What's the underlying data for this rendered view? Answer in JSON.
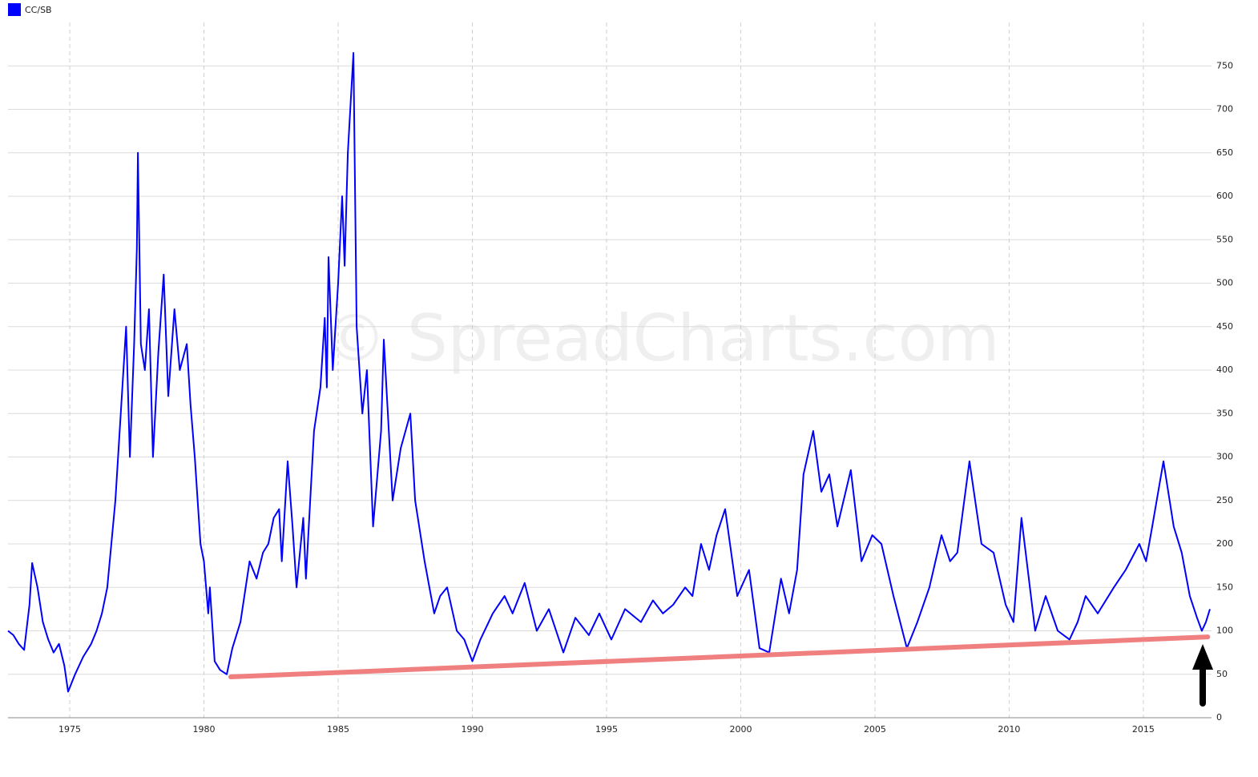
{
  "chart_data": {
    "type": "line",
    "watermark": "© SpreadCharts.com",
    "x": [
      1972.7,
      1972.9,
      1973.1,
      1973.3,
      1973.5,
      1973.6,
      1973.8,
      1974.0,
      1974.2,
      1974.4,
      1974.6,
      1974.8,
      1974.94,
      1975.2,
      1975.5,
      1975.8,
      1976.0,
      1976.2,
      1976.4,
      1976.7,
      1976.9,
      1977.1,
      1977.24,
      1977.4,
      1977.5,
      1977.54,
      1977.65,
      1977.8,
      1977.95,
      1978.1,
      1978.3,
      1978.5,
      1978.67,
      1978.9,
      1979.1,
      1979.36,
      1979.5,
      1979.66,
      1979.87,
      1980.0,
      1980.16,
      1980.22,
      1980.4,
      1980.6,
      1980.85,
      1981.06,
      1981.36,
      1981.7,
      1981.96,
      1982.2,
      1982.4,
      1982.6,
      1982.8,
      1982.9,
      1983.12,
      1983.3,
      1983.45,
      1983.7,
      1983.8,
      1984.1,
      1984.34,
      1984.5,
      1984.58,
      1984.64,
      1984.8,
      1985.0,
      1985.15,
      1985.24,
      1985.36,
      1985.57,
      1985.69,
      1985.9,
      1986.07,
      1986.3,
      1986.6,
      1986.7,
      1987.03,
      1987.33,
      1987.69,
      1987.87,
      1988.22,
      1988.58,
      1988.8,
      1989.06,
      1989.42,
      1989.7,
      1990.0,
      1990.3,
      1990.76,
      1991.2,
      1991.5,
      1991.95,
      1992.4,
      1992.85,
      1993.39,
      1993.84,
      1994.34,
      1994.73,
      1995.18,
      1995.69,
      1996.28,
      1996.73,
      1997.1,
      1997.48,
      1997.93,
      1998.2,
      1998.52,
      1998.82,
      1999.1,
      1999.42,
      1999.87,
      2000.31,
      2000.7,
      2001.06,
      2001.5,
      2001.8,
      2002.1,
      2002.34,
      2002.7,
      2003.0,
      2003.3,
      2003.6,
      2004.1,
      2004.5,
      2004.9,
      2005.24,
      2005.69,
      2006.19,
      2006.58,
      2007.03,
      2007.48,
      2007.8,
      2008.07,
      2008.52,
      2008.97,
      2009.42,
      2009.87,
      2010.16,
      2010.46,
      2010.97,
      2011.36,
      2011.81,
      2012.25,
      2012.55,
      2012.85,
      2013.3,
      2013.9,
      2014.34,
      2014.85,
      2015.1,
      2015.33,
      2015.75,
      2016.13,
      2016.43,
      2016.73,
      2017.0,
      2017.18,
      2017.33,
      2017.48
    ],
    "series": [
      {
        "name": "CC/SB",
        "color": "#0000ff",
        "values": [
          100,
          95,
          85,
          78,
          130,
          178,
          150,
          110,
          90,
          75,
          85,
          60,
          30,
          50,
          70,
          85,
          100,
          120,
          150,
          250,
          350,
          450,
          300,
          430,
          540,
          650,
          430,
          400,
          470,
          300,
          420,
          510,
          370,
          470,
          400,
          430,
          360,
          300,
          200,
          180,
          120,
          150,
          65,
          55,
          50,
          80,
          110,
          180,
          160,
          190,
          200,
          230,
          240,
          180,
          295,
          220,
          150,
          230,
          160,
          330,
          380,
          460,
          380,
          530,
          400,
          500,
          600,
          520,
          650,
          765,
          450,
          350,
          400,
          220,
          330,
          435,
          250,
          310,
          350,
          250,
          180,
          120,
          140,
          150,
          100,
          90,
          65,
          90,
          120,
          140,
          120,
          155,
          100,
          125,
          75,
          115,
          95,
          120,
          90,
          125,
          110,
          135,
          120,
          130,
          150,
          140,
          200,
          170,
          210,
          240,
          140,
          170,
          80,
          75,
          160,
          120,
          170,
          280,
          330,
          260,
          280,
          220,
          285,
          180,
          210,
          200,
          140,
          80,
          110,
          150,
          210,
          180,
          190,
          295,
          200,
          190,
          130,
          110,
          230,
          100,
          140,
          100,
          90,
          110,
          140,
          120,
          150,
          170,
          200,
          180,
          220,
          295,
          220,
          190,
          140,
          115,
          100,
          110,
          125
        ]
      }
    ],
    "trend_line": {
      "x": [
        1981.0,
        2017.4
      ],
      "values": [
        47,
        93
      ],
      "color": "#f08080"
    },
    "xlim": [
      1972.7,
      2017.54
    ],
    "xticks": [
      1975,
      1980,
      1985,
      1990,
      1995,
      2000,
      2005,
      2010,
      2015
    ],
    "ylim": [
      0,
      800
    ],
    "yticks": [
      0,
      50,
      100,
      150,
      200,
      250,
      300,
      350,
      400,
      450,
      500,
      550,
      600,
      650,
      700,
      750
    ],
    "grid": true
  }
}
